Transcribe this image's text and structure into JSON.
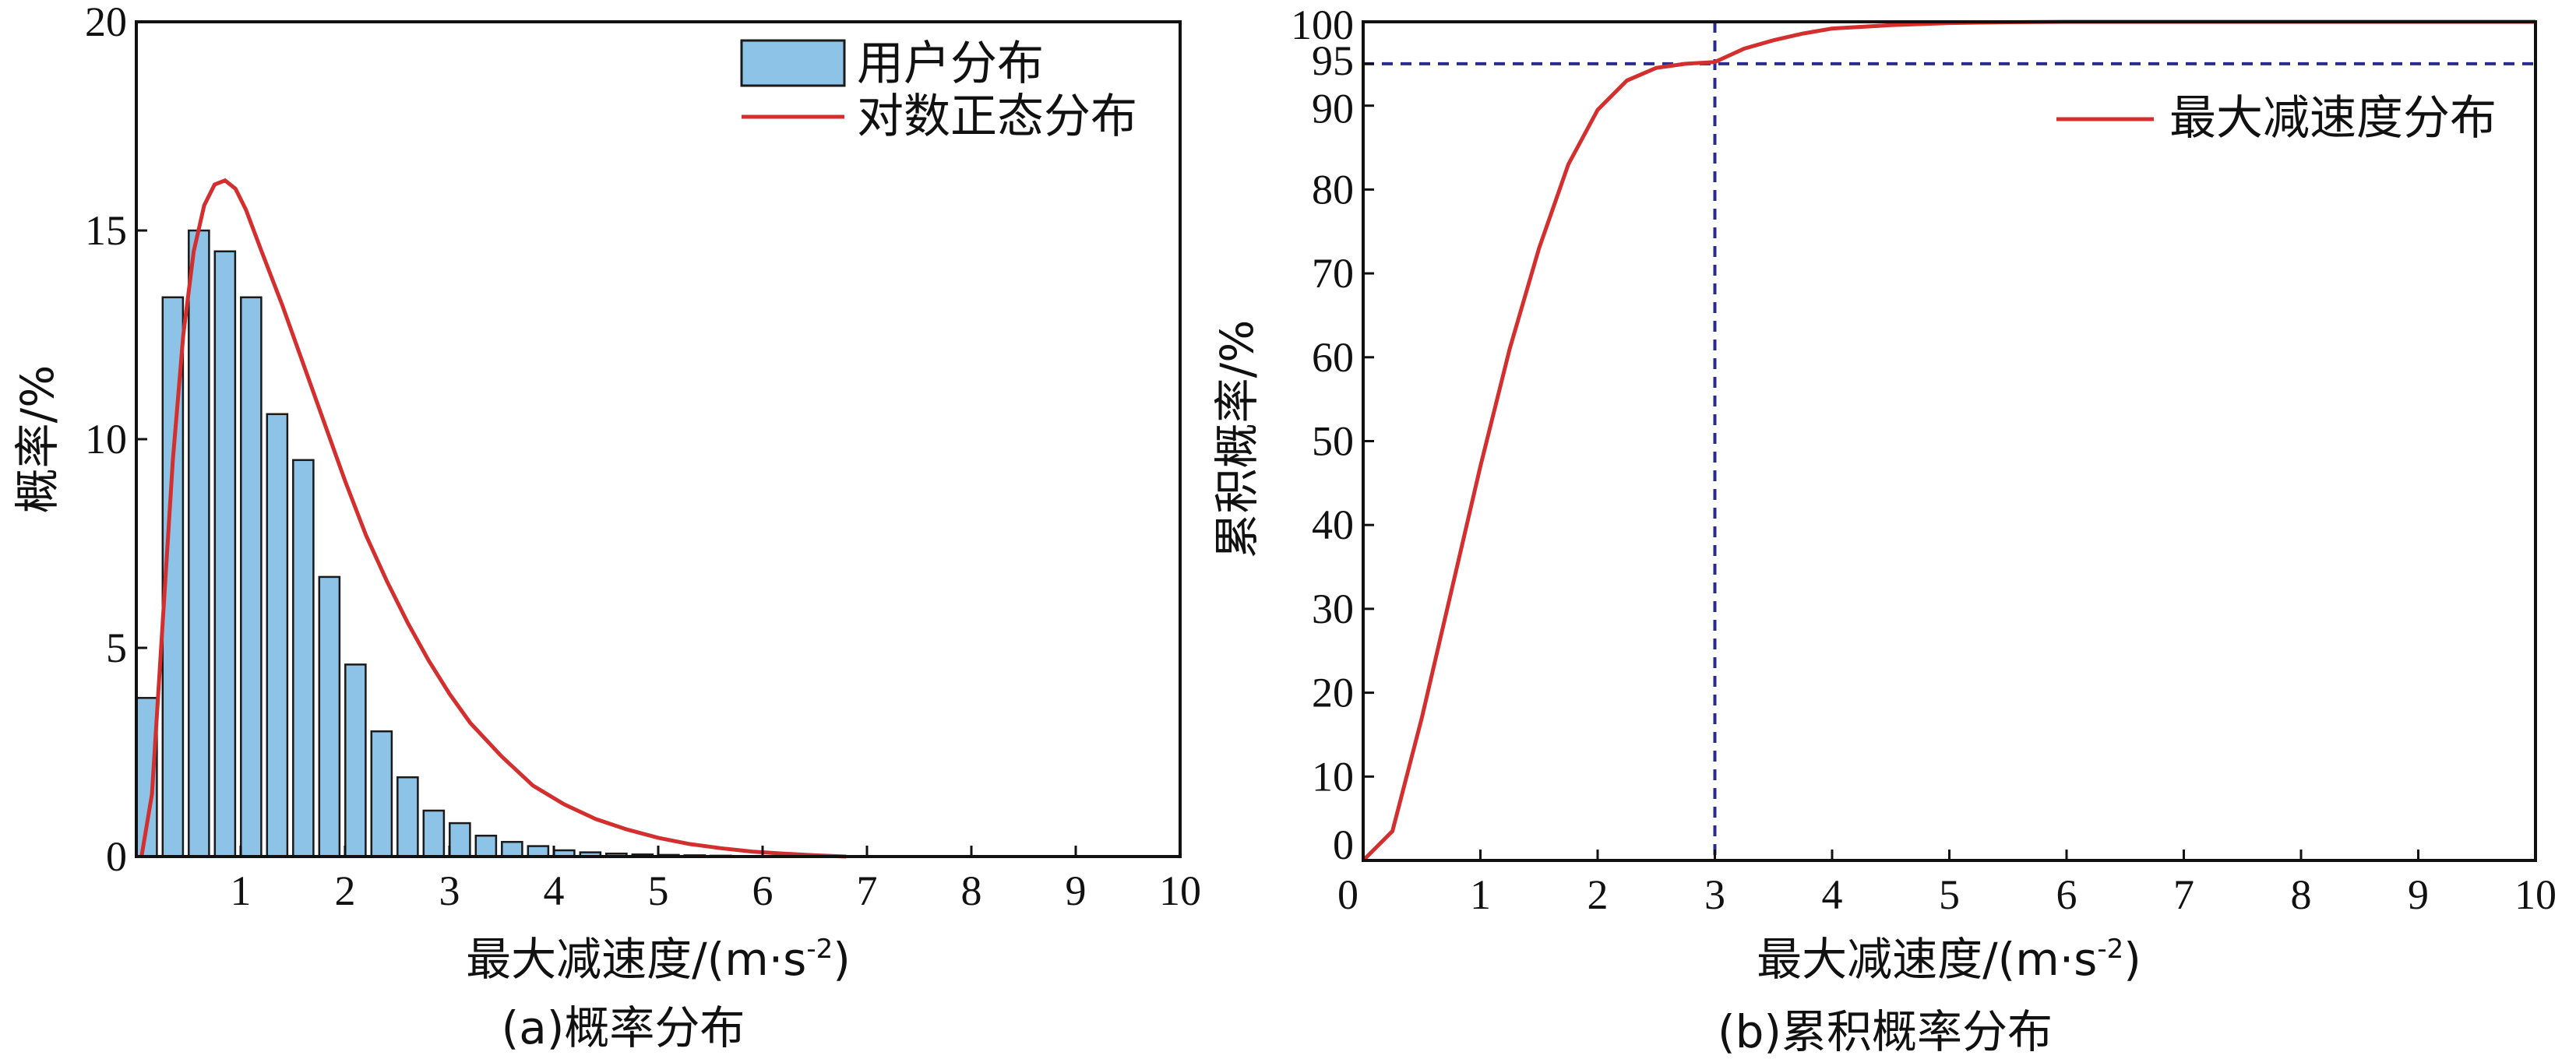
{
  "colors": {
    "bar_fill": "#8cc3e6",
    "bar_stroke": "#1a1a1a",
    "curve": "#d32f2f",
    "ref_line": "#2b2b8f"
  },
  "chart_data": [
    {
      "type": "bar",
      "caption": "(a)概率分布",
      "xlabel": "最大减速度/(m·s",
      "xlabel_sup": "-2",
      "xlabel_end": ")",
      "ylabel": "概率/%",
      "xlim": [
        0,
        10
      ],
      "ylim": [
        0,
        20
      ],
      "x_ticks": [
        "1",
        "2",
        "3",
        "4",
        "5",
        "6",
        "7",
        "8",
        "9",
        "10"
      ],
      "y_ticks": [
        "0",
        "5",
        "10",
        "15",
        "20"
      ],
      "legend": {
        "position": "top-right",
        "entries": [
          "用户分布",
          "对数正态分布"
        ]
      },
      "series": [
        {
          "name": "用户分布",
          "type": "bar",
          "x": [
            0.1,
            0.35,
            0.6,
            0.85,
            1.1,
            1.35,
            1.6,
            1.85,
            2.1,
            2.35,
            2.6,
            2.85,
            3.1,
            3.35,
            3.6,
            3.85,
            4.1,
            4.35,
            4.6,
            4.85,
            5.1,
            5.35,
            5.6,
            5.85,
            6.1
          ],
          "values": [
            3.8,
            13.4,
            15.0,
            14.5,
            13.4,
            10.6,
            9.5,
            6.7,
            4.6,
            3.0,
            1.9,
            1.1,
            0.8,
            0.5,
            0.35,
            0.25,
            0.15,
            0.1,
            0.07,
            0.05,
            0.04,
            0.03,
            0.02,
            0.01,
            0.01
          ]
        },
        {
          "name": "对数正态分布",
          "type": "line",
          "x": [
            0.05,
            0.15,
            0.25,
            0.35,
            0.45,
            0.55,
            0.65,
            0.75,
            0.85,
            0.95,
            1.05,
            1.2,
            1.4,
            1.6,
            1.8,
            2.0,
            2.2,
            2.4,
            2.6,
            2.8,
            3.0,
            3.2,
            3.5,
            3.8,
            4.1,
            4.4,
            4.7,
            5.0,
            5.3,
            5.6,
            5.9,
            6.2,
            6.5,
            6.8
          ],
          "values": [
            0.0,
            1.5,
            5.5,
            9.5,
            12.5,
            14.5,
            15.6,
            16.1,
            16.2,
            16.0,
            15.5,
            14.5,
            13.2,
            11.8,
            10.4,
            9.0,
            7.7,
            6.6,
            5.6,
            4.7,
            3.9,
            3.2,
            2.4,
            1.7,
            1.25,
            0.9,
            0.65,
            0.45,
            0.3,
            0.2,
            0.12,
            0.07,
            0.03,
            0.0
          ]
        }
      ]
    },
    {
      "type": "line",
      "caption": "(b)累积概率分布",
      "xlabel": "最大减速度/(m·s",
      "xlabel_sup": "-2",
      "xlabel_end": ")",
      "ylabel": "累积概率/%",
      "xlim": [
        0,
        10
      ],
      "ylim": [
        0,
        100
      ],
      "x_ticks": [
        "0",
        "1",
        "2",
        "3",
        "4",
        "5",
        "6",
        "7",
        "8",
        "9",
        "10"
      ],
      "y_ticks": [
        "0",
        "10",
        "20",
        "30",
        "40",
        "50",
        "60",
        "70",
        "80",
        "90",
        "95",
        "100"
      ],
      "legend": {
        "position": "top-right",
        "entries": [
          "最大减速度分布"
        ]
      },
      "reference": {
        "x": 3,
        "y": 95
      },
      "series": [
        {
          "name": "最大减速度分布",
          "x": [
            0,
            0.25,
            0.5,
            0.75,
            1.0,
            1.25,
            1.5,
            1.75,
            2.0,
            2.25,
            2.5,
            2.75,
            3.0,
            3.25,
            3.5,
            3.75,
            4.0,
            4.5,
            5.0,
            5.5,
            6.0,
            7.0,
            8.0,
            9.0,
            10.0
          ],
          "values": [
            0,
            3.5,
            17,
            32,
            47,
            61,
            73,
            83,
            89.5,
            93,
            94.5,
            95,
            95.2,
            96.8,
            97.8,
            98.6,
            99.2,
            99.6,
            99.85,
            99.95,
            100,
            100,
            100,
            100,
            100
          ]
        }
      ]
    }
  ]
}
